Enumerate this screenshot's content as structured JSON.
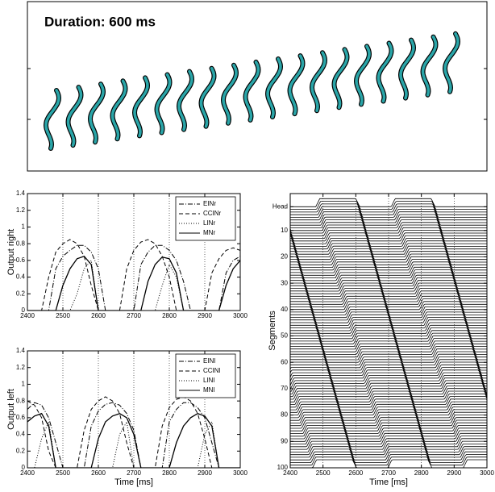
{
  "top": {
    "title": "Duration: 600 ms"
  },
  "chart_data": [
    {
      "type": "line",
      "ylabel": "Output right",
      "x": [
        2400,
        2420,
        2440,
        2460,
        2480,
        2500,
        2520,
        2540,
        2560,
        2580,
        2600,
        2620,
        2640,
        2660,
        2680,
        2700,
        2720,
        2740,
        2760,
        2780,
        2800,
        2820,
        2840,
        2860,
        2880,
        2900,
        2920,
        2940,
        2960,
        2980,
        3000
      ],
      "xlim": [
        2400,
        3000
      ],
      "ylim": [
        0,
        1.4
      ],
      "xticks": [
        2400,
        2500,
        2600,
        2700,
        2800,
        2900,
        3000
      ],
      "yticks": [
        0,
        0.2,
        0.4,
        0.6,
        0.8,
        1,
        1.2,
        1.4
      ],
      "grid": "x",
      "legend": "upper right",
      "series": [
        {
          "name": "EINr",
          "color": "#000000",
          "linestyle": "dashdot",
          "values": [
            0,
            0,
            0,
            0,
            0.5,
            0.65,
            0.72,
            0.78,
            0.78,
            0.7,
            0.5,
            0,
            0,
            0,
            0,
            0,
            0.55,
            0.7,
            0.78,
            0.78,
            0.72,
            0.6,
            0.35,
            0,
            0,
            0,
            0,
            0,
            0.45,
            0.6,
            0.65
          ]
        },
        {
          "name": "CCINr",
          "color": "#000000",
          "linestyle": "dashed",
          "values": [
            0,
            0,
            0,
            0.4,
            0.7,
            0.8,
            0.85,
            0.8,
            0.65,
            0.3,
            0,
            0,
            0,
            0,
            0.5,
            0.72,
            0.82,
            0.85,
            0.8,
            0.65,
            0.4,
            0,
            0,
            0,
            0,
            0,
            0.45,
            0.62,
            0.72,
            0.75,
            0.72
          ]
        },
        {
          "name": "LINr",
          "color": "#000000",
          "linestyle": "dotted",
          "values": [
            0,
            0,
            0,
            0,
            0,
            0,
            0,
            0.2,
            0.5,
            0.6,
            0,
            0,
            0,
            0,
            0,
            0,
            0,
            0,
            0,
            0.3,
            0.55,
            0.4,
            0,
            0,
            0,
            0,
            0,
            0,
            0,
            0,
            0
          ]
        },
        {
          "name": "MNr",
          "color": "#000000",
          "linestyle": "solid",
          "values": [
            0,
            0,
            0,
            0,
            0,
            0.3,
            0.5,
            0.62,
            0.65,
            0.55,
            0,
            0,
            0,
            0,
            0,
            0,
            0,
            0.35,
            0.55,
            0.64,
            0.62,
            0.45,
            0,
            0,
            0,
            0,
            0,
            0,
            0.3,
            0.5,
            0.6
          ]
        }
      ]
    },
    {
      "type": "line",
      "ylabel": "Output left",
      "xlabel": "Time [ms]",
      "x": [
        2400,
        2420,
        2440,
        2460,
        2480,
        2500,
        2520,
        2540,
        2560,
        2580,
        2600,
        2620,
        2640,
        2660,
        2680,
        2700,
        2720,
        2740,
        2760,
        2780,
        2800,
        2820,
        2840,
        2860,
        2880,
        2900,
        2920,
        2940,
        2960,
        2980,
        3000
      ],
      "xlim": [
        2400,
        3000
      ],
      "ylim": [
        0,
        1.4
      ],
      "xticks": [
        2400,
        2500,
        2600,
        2700,
        2800,
        2900,
        3000
      ],
      "yticks": [
        0,
        0.2,
        0.4,
        0.6,
        0.8,
        1,
        1.2,
        1.4
      ],
      "grid": "x",
      "legend": "upper right",
      "series": [
        {
          "name": "EINl",
          "color": "#000000",
          "linestyle": "dashdot",
          "values": [
            0.7,
            0.78,
            0.75,
            0.6,
            0.3,
            0,
            0,
            0,
            0,
            0.5,
            0.68,
            0.76,
            0.78,
            0.75,
            0.65,
            0.45,
            0,
            0,
            0,
            0,
            0.55,
            0.7,
            0.78,
            0.78,
            0.72,
            0.6,
            0.3,
            0,
            0,
            0,
            0
          ]
        },
        {
          "name": "CCINl",
          "color": "#000000",
          "linestyle": "dashed",
          "values": [
            0.8,
            0.75,
            0.6,
            0.2,
            0,
            0,
            0,
            0,
            0.45,
            0.7,
            0.8,
            0.85,
            0.8,
            0.65,
            0.3,
            0,
            0,
            0,
            0,
            0.5,
            0.72,
            0.82,
            0.85,
            0.8,
            0.65,
            0.35,
            0,
            0,
            0,
            0,
            0
          ]
        },
        {
          "name": "LINl",
          "color": "#000000",
          "linestyle": "dotted",
          "values": [
            0,
            0,
            0.35,
            0.55,
            0,
            0,
            0,
            0,
            0,
            0,
            0,
            0,
            0,
            0.4,
            0.55,
            0,
            0,
            0,
            0,
            0,
            0,
            0,
            0,
            0,
            0,
            0.4,
            0.55,
            0,
            0,
            0,
            0
          ]
        },
        {
          "name": "MNl",
          "color": "#000000",
          "linestyle": "solid",
          "values": [
            0.55,
            0.62,
            0.65,
            0.5,
            0,
            0,
            0,
            0,
            0,
            0,
            0.35,
            0.55,
            0.62,
            0.65,
            0.6,
            0.4,
            0,
            0,
            0,
            0,
            0,
            0.3,
            0.5,
            0.6,
            0.65,
            0.62,
            0.5,
            0,
            0,
            0,
            0
          ]
        }
      ]
    },
    {
      "type": "raster",
      "ylabel": "Segments",
      "xlabel": "Time [ms]",
      "xlim": [
        2400,
        3000
      ],
      "ylim": [
        -4,
        100
      ],
      "y_inverted": true,
      "xticks": [
        2400,
        2500,
        2600,
        2700,
        2800,
        2900,
        3000
      ],
      "yticks": [
        {
          "value": 1,
          "label": "Head"
        },
        10,
        20,
        30,
        40,
        50,
        60,
        70,
        80,
        90,
        100
      ],
      "grid": "x",
      "segment_count": 100,
      "waves": [
        {
          "head_start": 2260,
          "head_end": 2370,
          "tail_start": 2480,
          "tail_end": 2590
        },
        {
          "head_start": 2490,
          "head_end": 2600,
          "tail_start": 2710,
          "tail_end": 2820
        },
        {
          "head_start": 2720,
          "head_end": 2830,
          "tail_start": 2940,
          "tail_end": 3050
        }
      ]
    }
  ]
}
